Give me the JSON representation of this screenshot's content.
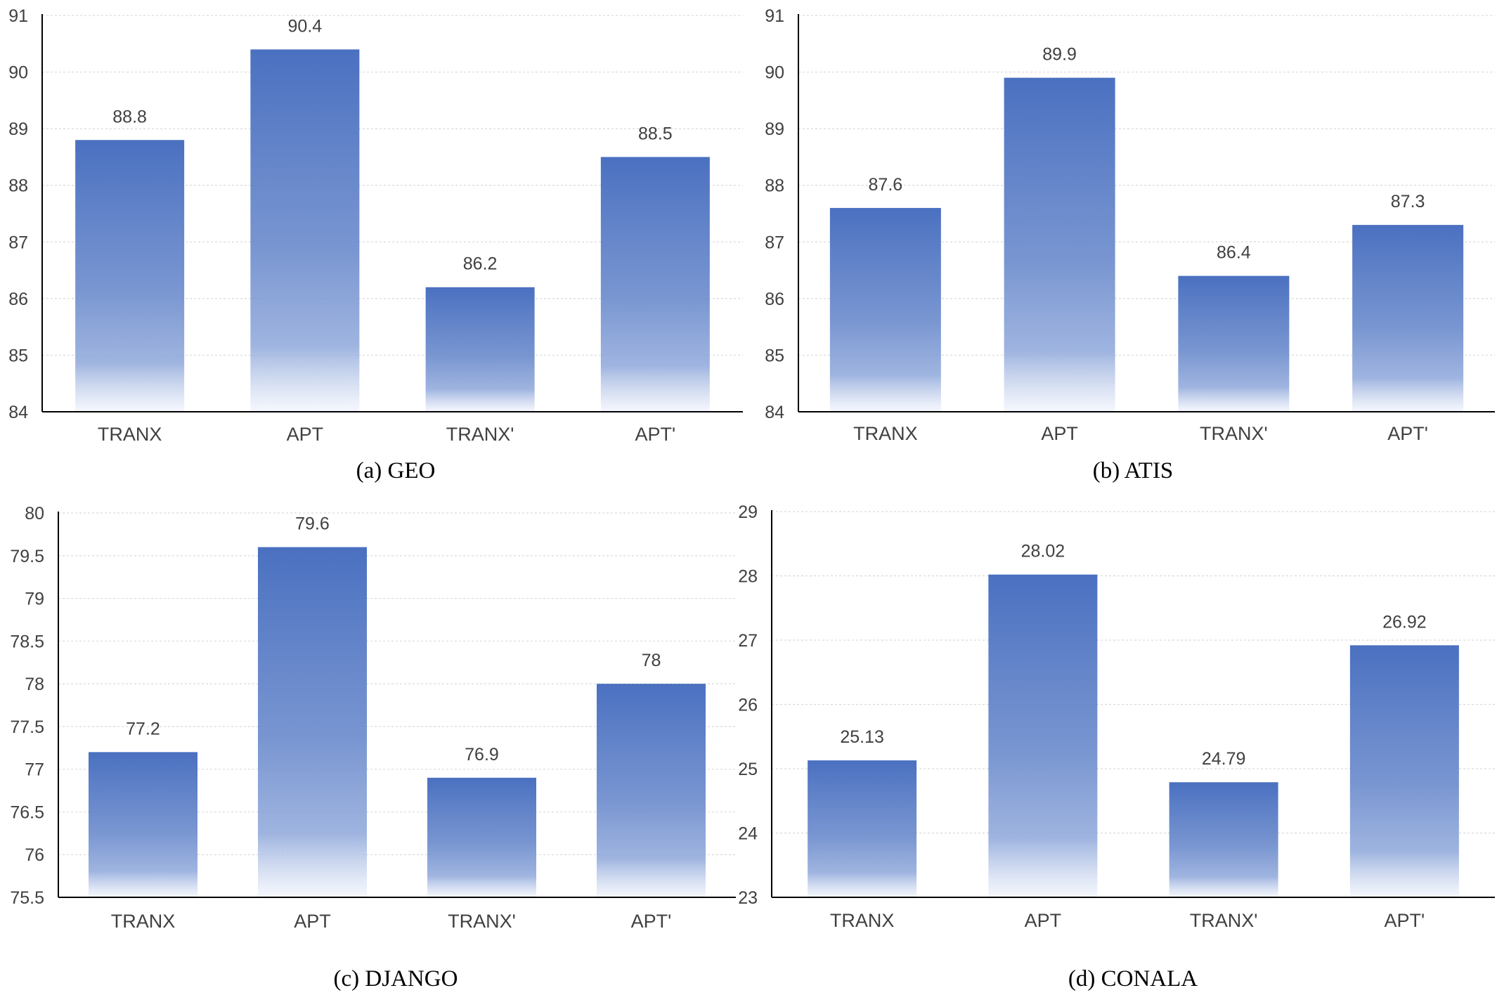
{
  "chart_data": [
    {
      "type": "bar",
      "caption": "(a) GEO",
      "categories": [
        "TRANX",
        "APT",
        "TRANX'",
        "APT'"
      ],
      "values": [
        88.8,
        90.4,
        86.2,
        88.5
      ],
      "data_labels": [
        "88.8",
        "90.4",
        "86.2",
        "88.5"
      ],
      "ylim": [
        84,
        91
      ],
      "yticks": [
        84,
        85,
        86,
        87,
        88,
        89,
        90,
        91
      ],
      "ytick_labels": [
        "84",
        "85",
        "86",
        "87",
        "88",
        "89",
        "90",
        "91"
      ],
      "grid": true,
      "bar_color": "#4a70c0"
    },
    {
      "type": "bar",
      "caption": "(b) ATIS",
      "categories": [
        "TRANX",
        "APT",
        "TRANX'",
        "APT'"
      ],
      "values": [
        87.6,
        89.9,
        86.4,
        87.3
      ],
      "data_labels": [
        "87.6",
        "89.9",
        "86.4",
        "87.3"
      ],
      "ylim": [
        84,
        91
      ],
      "yticks": [
        84,
        85,
        86,
        87,
        88,
        89,
        90,
        91
      ],
      "ytick_labels": [
        "84",
        "85",
        "86",
        "87",
        "88",
        "89",
        "90",
        "91"
      ],
      "grid": true,
      "bar_color": "#4a70c0"
    },
    {
      "type": "bar",
      "caption": "(c) DJANGO",
      "categories": [
        "TRANX",
        "APT",
        "TRANX'",
        "APT'"
      ],
      "values": [
        77.2,
        79.6,
        76.9,
        78
      ],
      "data_labels": [
        "77.2",
        "79.6",
        "76.9",
        "78"
      ],
      "ylim": [
        75.5,
        80
      ],
      "yticks": [
        75.5,
        76,
        76.5,
        77,
        77.5,
        78,
        78.5,
        79,
        79.5,
        80
      ],
      "ytick_labels": [
        "75.5",
        "76",
        "76.5",
        "77",
        "77.5",
        "78",
        "78.5",
        "79",
        "79.5",
        "80"
      ],
      "grid": true,
      "bar_color": "#4a70c0"
    },
    {
      "type": "bar",
      "caption": "(d) CONALA",
      "categories": [
        "TRANX",
        "APT",
        "TRANX'",
        "APT'"
      ],
      "values": [
        25.13,
        28.02,
        24.79,
        26.92
      ],
      "data_labels": [
        "25.13",
        "28.02",
        "24.79",
        "26.92"
      ],
      "ylim": [
        23,
        29
      ],
      "yticks": [
        23,
        24,
        25,
        26,
        27,
        28,
        29
      ],
      "ytick_labels": [
        "23",
        "24",
        "25",
        "26",
        "27",
        "28",
        "29"
      ],
      "grid": true,
      "bar_color": "#4a70c0"
    }
  ]
}
